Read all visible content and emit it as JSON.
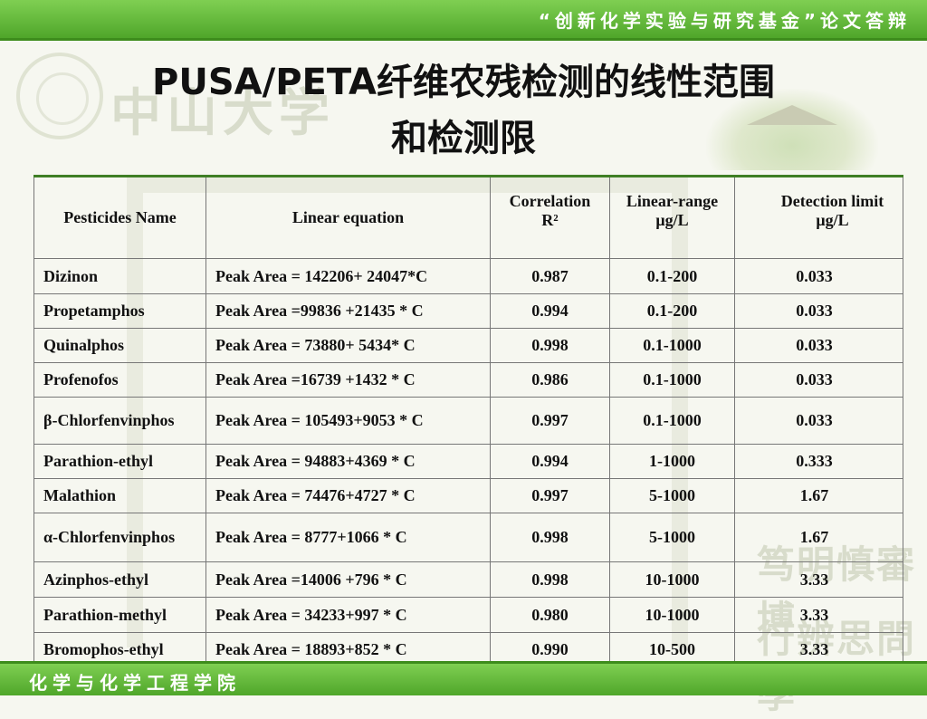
{
  "header": {
    "title": "“创新化学实验与研究基金”论文答辩"
  },
  "slide": {
    "title_line1": "PUSA/PETA纤维农残检测的线性范围",
    "title_line2": "和检测限"
  },
  "watermarks": {
    "left_logo_text": "中山大学",
    "motto_line1": "笃明慎審博",
    "motto_line2": "行辨思問學"
  },
  "table": {
    "headers": {
      "name": "Pesticides Name",
      "equation": "Linear equation",
      "correlation": "Correlation",
      "correlation_sub": "R²",
      "range": "Linear-range",
      "range_sub": "μg/L",
      "limit": "Detection limit",
      "limit_sub": "μg/L"
    },
    "rows": [
      {
        "name": "Dizinon",
        "equation": "Peak Area = 142206+ 24047*C",
        "r2": "0.987",
        "range": "0.1-200",
        "limit": "0.033"
      },
      {
        "name": "Propetamphos",
        "equation": "Peak Area =99836 +21435 * C",
        "r2": "0.994",
        "range": "0.1-200",
        "limit": "0.033"
      },
      {
        "name": "Quinalphos",
        "equation": "Peak Area = 73880+ 5434* C",
        "r2": "0.998",
        "range": "0.1-1000",
        "limit": "0.033"
      },
      {
        "name": "Profenofos",
        "equation": "Peak Area =16739 +1432 * C",
        "r2": "0.986",
        "range": "0.1-1000",
        "limit": "0.033"
      },
      {
        "name": "β-Chlorfenvinphos",
        "equation": "Peak Area = 105493+9053 * C",
        "r2": "0.997",
        "range": "0.1-1000",
        "limit": "0.033"
      },
      {
        "name": "Parathion-ethyl",
        "equation": "Peak Area = 94883+4369 * C",
        "r2": "0.994",
        "range": "1-1000",
        "limit": "0.333"
      },
      {
        "name": "Malathion",
        "equation": "Peak Area = 74476+4727 * C",
        "r2": "0.997",
        "range": "5-1000",
        "limit": "1.67"
      },
      {
        "name": "α-Chlorfenvinphos",
        "equation": "Peak Area = 8777+1066 * C",
        "r2": "0.998",
        "range": "5-1000",
        "limit": "1.67"
      },
      {
        "name": "Azinphos-ethyl",
        "equation": "Peak Area =14006 +796 * C",
        "r2": "0.998",
        "range": "10-1000",
        "limit": "3.33"
      },
      {
        "name": "Parathion-methyl",
        "equation": "Peak Area = 34233+997 * C",
        "r2": "0.980",
        "range": "10-1000",
        "limit": "3.33"
      },
      {
        "name": "Bromophos-ethyl",
        "equation": "Peak Area = 18893+852 * C",
        "r2": "0.990",
        "range": "10-500",
        "limit": "3.33"
      }
    ]
  },
  "footer": {
    "text": "化学与化学工程学院"
  }
}
